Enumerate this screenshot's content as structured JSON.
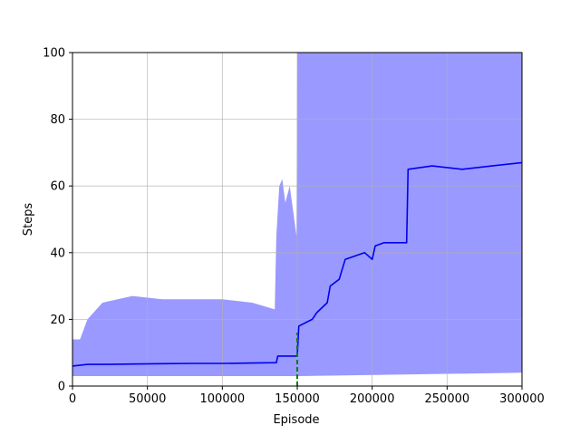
{
  "chart_data": {
    "type": "line",
    "title": "",
    "xlabel": "Episode",
    "ylabel": "Steps",
    "xlim": [
      0,
      300000
    ],
    "ylim": [
      0,
      100
    ],
    "x_ticks": [
      0,
      50000,
      100000,
      150000,
      200000,
      250000,
      300000
    ],
    "x_tick_labels": [
      "0",
      "50000",
      "100000",
      "150000",
      "200000",
      "250000",
      "300000"
    ],
    "y_ticks": [
      0,
      20,
      40,
      60,
      80,
      100
    ],
    "y_tick_labels": [
      "0",
      "20",
      "40",
      "60",
      "80",
      "100"
    ],
    "grid": true,
    "colors": {
      "band": "#9999ff",
      "mean_line": "#0000ee",
      "marker_line": "#008000"
    },
    "series": [
      {
        "role": "mean",
        "x": [
          0,
          10000,
          20000,
          40000,
          60000,
          80000,
          100000,
          120000,
          136000,
          137000,
          150000,
          151000,
          160000,
          163000,
          170000,
          172000,
          178000,
          182000,
          195000,
          200000,
          202000,
          208000,
          215000,
          223000,
          224000,
          240000,
          260000,
          280000,
          300000
        ],
        "values": [
          6,
          6.5,
          6.5,
          6.6,
          6.7,
          6.8,
          6.8,
          6.9,
          7,
          9,
          9,
          18,
          20,
          22,
          25,
          30,
          32,
          38,
          40,
          38,
          42,
          43,
          43,
          43,
          65,
          66,
          65,
          66,
          67
        ]
      },
      {
        "role": "band-upper",
        "x": [
          0,
          5000,
          10000,
          20000,
          40000,
          60000,
          80000,
          100000,
          120000,
          135000,
          136000,
          138000,
          140000,
          142000,
          145000,
          148000,
          149500,
          150000,
          300000
        ],
        "values": [
          14,
          14,
          20,
          25,
          27,
          26,
          26,
          26,
          25,
          23,
          45,
          60,
          62,
          55,
          60,
          50,
          45,
          100,
          100
        ]
      },
      {
        "role": "band-lower",
        "x": [
          0,
          150000,
          151000,
          300000
        ],
        "values": [
          3,
          3,
          3,
          4
        ]
      },
      {
        "role": "marker",
        "x": [
          150000,
          150000
        ],
        "values": [
          0,
          16
        ]
      }
    ]
  }
}
